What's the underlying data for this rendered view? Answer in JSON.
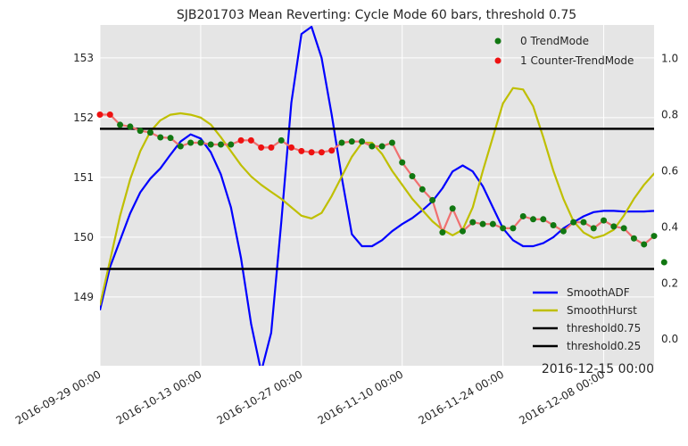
{
  "chart_data": {
    "type": "line",
    "title": "SJB201703 Mean Reverting: Cycle Mode 60 bars, threshold 0.75",
    "x_offset_label": "2016-12-15 00:00",
    "x_ticks": [
      "2016-09-29 00:00",
      "2016-10-13 00:00",
      "2016-10-27 00:00",
      "2016-11-10 00:00",
      "2016-11-24 00:00",
      "2016-12-08 00:00"
    ],
    "x_tick_index": [
      0,
      10,
      20,
      30,
      40,
      50
    ],
    "x_range": [
      0,
      55
    ],
    "left_axis": {
      "ticks": [
        149,
        150,
        151,
        152,
        153
      ],
      "ylim": [
        147.85,
        153.55
      ]
    },
    "right_axis": {
      "ticks": [
        "0.0",
        "0.2",
        "0.4",
        "0.6",
        "0.8",
        "1.0"
      ],
      "tick_values": [
        0.0,
        0.2,
        0.4,
        0.6,
        0.8,
        1.0
      ],
      "ylim": [
        -0.095,
        1.12
      ]
    },
    "grid": true,
    "background": "#e5e5e5",
    "price": {
      "color": "#f07070",
      "values": [
        152.05,
        152.05,
        151.88,
        151.85,
        151.78,
        151.75,
        151.67,
        151.66,
        151.52,
        151.58,
        151.58,
        151.55,
        151.55,
        151.55,
        151.62,
        151.62,
        151.5,
        151.5,
        151.62,
        151.5,
        151.44,
        151.42,
        151.42,
        151.45,
        151.58,
        151.6,
        151.6,
        151.52,
        151.52,
        151.58,
        151.25,
        151.02,
        150.8,
        150.62,
        150.08,
        150.48,
        150.1,
        150.25,
        150.22,
        150.22,
        150.15,
        150.15,
        150.35,
        150.3,
        150.3,
        150.2,
        150.1,
        150.25,
        150.25,
        150.15,
        150.28,
        150.18,
        150.15,
        149.98,
        149.88,
        150.02,
        149.58
      ],
      "mode": [
        1,
        1,
        0,
        0,
        0,
        0,
        0,
        0,
        0,
        0,
        0,
        0,
        0,
        0,
        1,
        1,
        1,
        1,
        0,
        1,
        1,
        1,
        1,
        1,
        0,
        0,
        0,
        0,
        0,
        0,
        0,
        0,
        0,
        0,
        0,
        0,
        0,
        0,
        0,
        0,
        0,
        0,
        0,
        0,
        0,
        0,
        0,
        0,
        0,
        0,
        0,
        0,
        0,
        0,
        0,
        0,
        0
      ]
    },
    "markers": [
      {
        "label": "0 TrendMode",
        "color": "#117711"
      },
      {
        "label": "1 Counter-TrendMode",
        "color": "#ee1111"
      }
    ],
    "series": [
      {
        "name": "SmoothADF",
        "color": "#0000ff",
        "values": [
          148.78,
          149.5,
          149.95,
          150.4,
          150.75,
          150.98,
          151.15,
          151.38,
          151.6,
          151.72,
          151.65,
          151.42,
          151.05,
          150.5,
          149.65,
          148.55,
          147.75,
          148.4,
          150.25,
          152.25,
          153.4,
          153.52,
          153.0,
          152.05,
          151.0,
          150.05,
          149.85,
          149.85,
          149.95,
          150.1,
          150.22,
          150.32,
          150.45,
          150.6,
          150.82,
          151.1,
          151.2,
          151.1,
          150.85,
          150.5,
          150.15,
          149.95,
          149.85,
          149.85,
          149.9,
          150.0,
          150.15,
          150.25,
          150.35,
          150.42,
          150.44,
          150.44,
          150.43,
          150.43,
          150.43,
          150.44,
          150.46
        ]
      },
      {
        "name": "SmoothHurst",
        "color": "#bfbf00",
        "values": [
          0.12,
          0.28,
          0.44,
          0.57,
          0.67,
          0.74,
          0.78,
          0.8,
          0.805,
          0.8,
          0.79,
          0.765,
          0.72,
          0.67,
          0.62,
          0.58,
          0.55,
          0.525,
          0.5,
          0.47,
          0.44,
          0.43,
          0.45,
          0.51,
          0.58,
          0.65,
          0.7,
          0.7,
          0.66,
          0.6,
          0.55,
          0.5,
          0.46,
          0.42,
          0.39,
          0.37,
          0.39,
          0.47,
          0.6,
          0.72,
          0.84,
          0.895,
          0.89,
          0.83,
          0.72,
          0.6,
          0.5,
          0.42,
          0.38,
          0.36,
          0.37,
          0.39,
          0.44,
          0.5,
          0.55,
          0.59,
          0.61
        ]
      },
      {
        "name": "threshold0.75",
        "color": "#000000",
        "constant": 0.75
      },
      {
        "name": "threshold0.25",
        "color": "#000000",
        "constant": 0.25
      }
    ],
    "legend_upper": "top-right",
    "legend_lower": "bottom-right"
  }
}
